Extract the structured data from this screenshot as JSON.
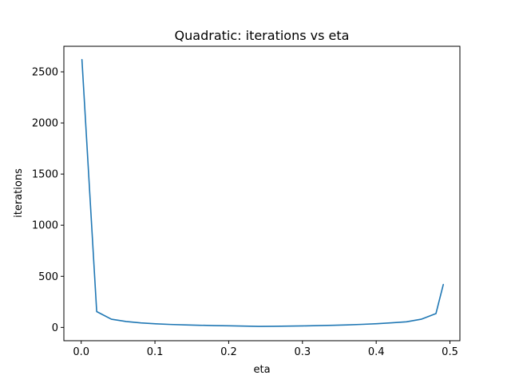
{
  "chart_data": {
    "type": "line",
    "title": "Quadratic: iterations vs eta",
    "xlabel": "eta",
    "ylabel": "iterations",
    "xlim": [
      -0.0235,
      0.5135
    ],
    "ylim": [
      -130,
      2750
    ],
    "xticks": [
      0.0,
      0.1,
      0.2,
      0.3,
      0.4,
      0.5
    ],
    "xtick_labels": [
      "0.0",
      "0.1",
      "0.2",
      "0.3",
      "0.4",
      "0.5"
    ],
    "yticks": [
      0,
      500,
      1000,
      1500,
      2000,
      2500
    ],
    "ytick_labels": [
      "0",
      "500",
      "1000",
      "1500",
      "2000",
      "2500"
    ],
    "grid": false,
    "series": [
      {
        "color": "#1f77b4",
        "x": [
          0.001,
          0.021,
          0.041,
          0.061,
          0.081,
          0.101,
          0.121,
          0.141,
          0.161,
          0.181,
          0.201,
          0.221,
          0.241,
          0.261,
          0.281,
          0.301,
          0.321,
          0.341,
          0.361,
          0.381,
          0.401,
          0.421,
          0.441,
          0.461,
          0.481,
          0.491
        ],
        "y": [
          2620,
          155,
          80,
          58,
          44,
          35,
          29,
          25,
          21,
          18,
          16,
          13,
          10,
          11,
          13,
          15,
          18,
          21,
          25,
          30,
          36,
          45,
          55,
          80,
          135,
          420
        ]
      }
    ]
  }
}
